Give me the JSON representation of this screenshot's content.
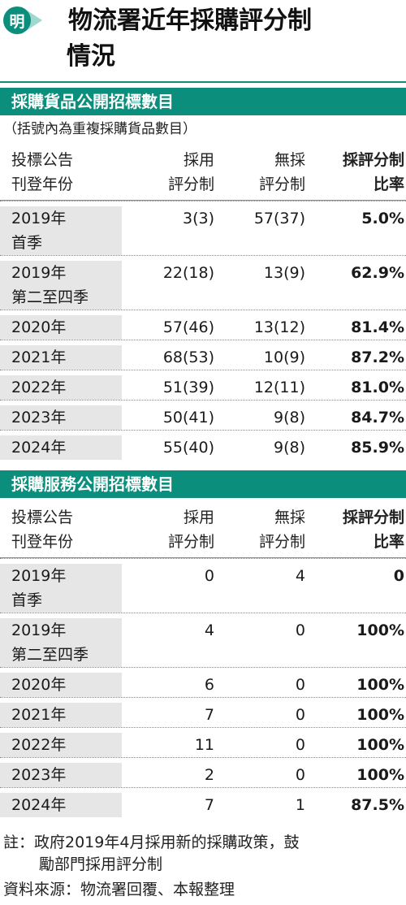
{
  "header": {
    "logo_char": "明",
    "title_line1": "物流署近年採購評分制",
    "title_line2": "情況"
  },
  "goods": {
    "section_title": "採購貨品公開招標數目",
    "note": "（括號內為重複採購貨品數目）",
    "headers": {
      "year_line1": "投標公告",
      "year_line2": "刊登年份",
      "a_line1": "採用",
      "a_line2": "評分制",
      "b_line1": "無採",
      "b_line2": "評分制",
      "c_line1": "採評分制",
      "c_line2": "比率"
    },
    "rows": [
      {
        "year1": "2019年",
        "year2": "首季",
        "a": "3(3)",
        "b": "57(37)",
        "c": "5.0%"
      },
      {
        "year1": "2019年",
        "year2": "第二至四季",
        "a": "22(18)",
        "b": "13(9)",
        "c": "62.9%"
      },
      {
        "year1": "2020年",
        "year2": "",
        "a": "57(46)",
        "b": "13(12)",
        "c": "81.4%"
      },
      {
        "year1": "2021年",
        "year2": "",
        "a": "68(53)",
        "b": "10(9)",
        "c": "87.2%"
      },
      {
        "year1": "2022年",
        "year2": "",
        "a": "51(39)",
        "b": "12(11)",
        "c": "81.0%"
      },
      {
        "year1": "2023年",
        "year2": "",
        "a": "50(41)",
        "b": "9(8)",
        "c": "84.7%"
      },
      {
        "year1": "2024年",
        "year2": "",
        "a": "55(40)",
        "b": "9(8)",
        "c": "85.9%"
      }
    ]
  },
  "services": {
    "section_title": "採購服務公開招標數目",
    "headers": {
      "year_line1": "投標公告",
      "year_line2": "刊登年份",
      "a_line1": "採用",
      "a_line2": "評分制",
      "b_line1": "無採",
      "b_line2": "評分制",
      "c_line1": "採評分制",
      "c_line2": "比率"
    },
    "rows": [
      {
        "year1": "2019年",
        "year2": "首季",
        "a": "0",
        "b": "4",
        "c": "0"
      },
      {
        "year1": "2019年",
        "year2": "第二至四季",
        "a": "4",
        "b": "0",
        "c": "100%"
      },
      {
        "year1": "2020年",
        "year2": "",
        "a": "6",
        "b": "0",
        "c": "100%"
      },
      {
        "year1": "2021年",
        "year2": "",
        "a": "7",
        "b": "0",
        "c": "100%"
      },
      {
        "year1": "2022年",
        "year2": "",
        "a": "11",
        "b": "0",
        "c": "100%"
      },
      {
        "year1": "2023年",
        "year2": "",
        "a": "2",
        "b": "0",
        "c": "100%"
      },
      {
        "year1": "2024年",
        "year2": "",
        "a": "7",
        "b": "1",
        "c": "87.5%"
      }
    ]
  },
  "footer": {
    "note_line1": "註：政府2019年4月採用新的採購政策，鼓",
    "note_line2": "勵部門採用評分制",
    "source": "資料來源：物流署回覆、本報整理"
  },
  "colors": {
    "accent": "#0b8f7c",
    "logo_arrow": "#9ed8cf",
    "year_cell_bg": "#e6e6e6"
  }
}
